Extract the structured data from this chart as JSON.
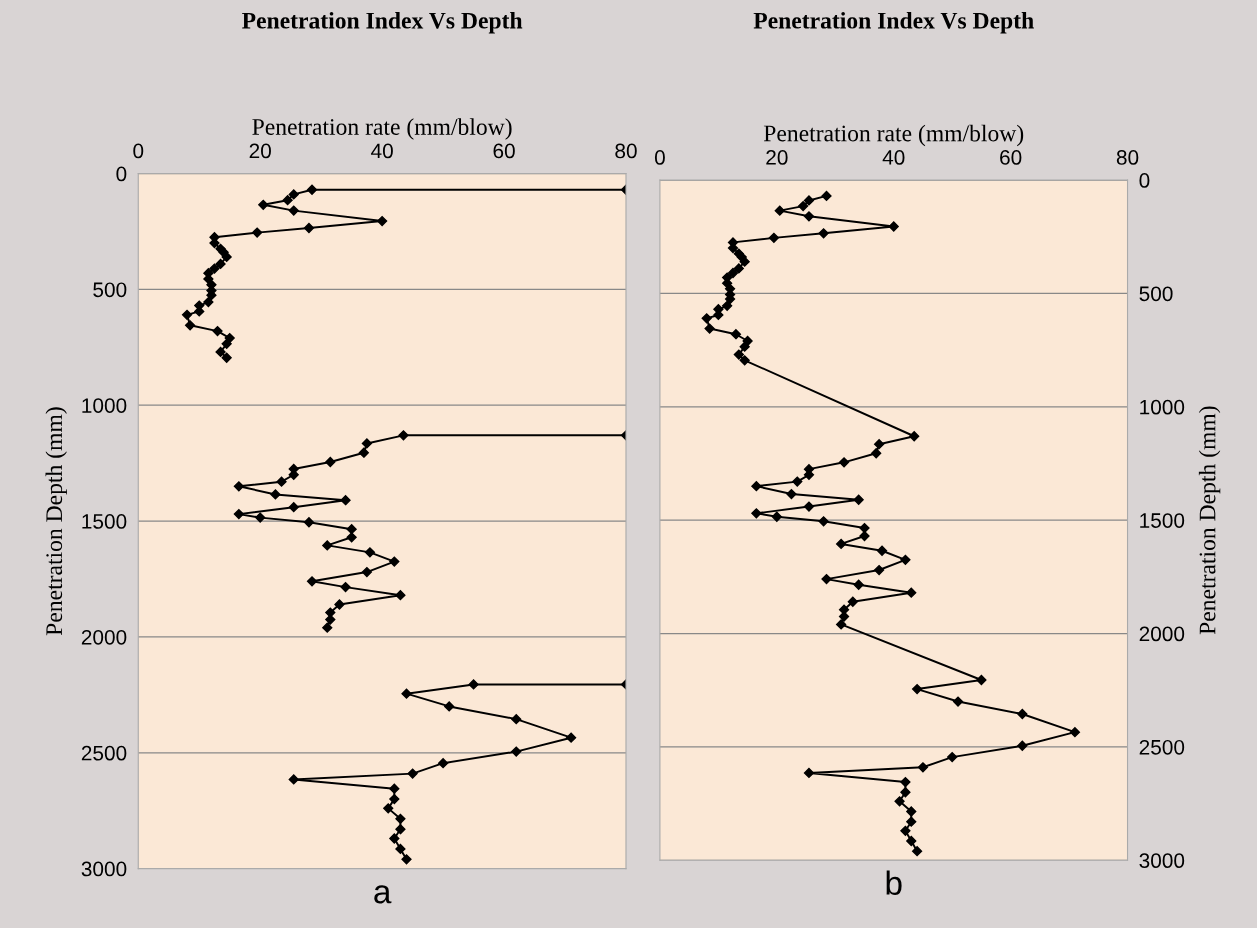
{
  "chart_data": [
    {
      "type": "line",
      "title": "Penetration Index Vs Depth",
      "xlabel": "Penetration rate (mm/blow)",
      "ylabel": "Penetration Depth (mm)",
      "xlim": [
        0,
        80
      ],
      "xticks": [
        0,
        20,
        40,
        60,
        80
      ],
      "ylim": [
        3000,
        0
      ],
      "yticks": [
        0,
        500,
        1000,
        1500,
        2000,
        2500,
        3000
      ],
      "grid": "y",
      "marker": "diamond",
      "line_style": "solid",
      "annotations": [
        "a"
      ],
      "series": [
        {
          "color": "#000000",
          "x": [
            80,
            28.5,
            25.5,
            24.5,
            20.5,
            25.5,
            40,
            28,
            19.5,
            12.5,
            12.5,
            13.5,
            14,
            14.5,
            13.5,
            12.5,
            11.5,
            11.5,
            12,
            12,
            12,
            11.5,
            10,
            10,
            8,
            8.5,
            13,
            15,
            14.5,
            13.5,
            14.5,
            null,
            80,
            43.5,
            37.5,
            37,
            31.5,
            25.5,
            25.5,
            23.5,
            16.5,
            22.5,
            34,
            25.5,
            16.5,
            20,
            28,
            35,
            35,
            31,
            38,
            42,
            37.5,
            28.5,
            34,
            43,
            33,
            31.5,
            31.5,
            31,
            null,
            80,
            55,
            44,
            51,
            62,
            71,
            62,
            50,
            45,
            25.5,
            42,
            42,
            41,
            43,
            43,
            42,
            43,
            44
          ],
          "values": [
            70,
            70,
            90,
            115,
            135,
            160,
            205,
            235,
            255,
            275,
            300,
            325,
            340,
            360,
            390,
            410,
            430,
            455,
            480,
            505,
            525,
            555,
            570,
            595,
            610,
            655,
            680,
            710,
            735,
            770,
            795,
            null,
            1130,
            1130,
            1165,
            1205,
            1245,
            1275,
            1300,
            1330,
            1350,
            1385,
            1410,
            1440,
            1470,
            1485,
            1505,
            1535,
            1570,
            1605,
            1635,
            1675,
            1720,
            1760,
            1785,
            1820,
            1860,
            1895,
            1925,
            1960,
            null,
            2205,
            2205,
            2245,
            2300,
            2355,
            2435,
            2495,
            2545,
            2590,
            2615,
            2655,
            2700,
            2740,
            2785,
            2830,
            2870,
            2915,
            2960
          ]
        }
      ]
    },
    {
      "type": "line",
      "title": "Penetration Index Vs Depth",
      "xlabel": "Penetration rate (mm/blow)",
      "y2label": "Penetration Depth (mm)",
      "xlim": [
        0,
        80
      ],
      "xticks": [
        0,
        20,
        40,
        60,
        80
      ],
      "y2lim": [
        3000,
        0
      ],
      "y2ticks": [
        0,
        500,
        1000,
        1500,
        2000,
        2500,
        3000
      ],
      "grid": "y",
      "marker": "diamond",
      "line_style": "solid",
      "annotations": [
        "b"
      ],
      "series": [
        {
          "color": "#000000",
          "axis": "y2",
          "x": [
            28.5,
            25.5,
            24.5,
            20.5,
            25.5,
            40,
            28,
            19.5,
            12.5,
            12.5,
            13.5,
            14,
            14.5,
            13.5,
            12.5,
            11.5,
            11.5,
            12,
            12,
            12,
            11.5,
            10,
            10,
            8,
            8.5,
            13,
            15,
            14.5,
            13.5,
            14.5,
            43.5,
            37.5,
            37,
            31.5,
            25.5,
            25.5,
            23.5,
            16.5,
            22.5,
            34,
            25.5,
            16.5,
            20,
            28,
            35,
            35,
            31,
            38,
            42,
            37.5,
            28.5,
            34,
            43,
            33,
            31.5,
            31.5,
            31,
            55,
            44,
            51,
            62,
            71,
            62,
            50,
            45,
            25.5,
            42,
            42,
            41,
            43,
            43,
            42,
            43,
            44
          ],
          "values": [
            70,
            90,
            115,
            135,
            160,
            205,
            235,
            255,
            275,
            300,
            325,
            340,
            360,
            390,
            410,
            430,
            455,
            480,
            505,
            525,
            555,
            570,
            595,
            610,
            655,
            680,
            710,
            735,
            770,
            795,
            1130,
            1165,
            1205,
            1245,
            1275,
            1300,
            1330,
            1350,
            1385,
            1410,
            1440,
            1470,
            1485,
            1505,
            1535,
            1570,
            1605,
            1635,
            1675,
            1720,
            1760,
            1785,
            1820,
            1860,
            1895,
            1925,
            1960,
            2205,
            2245,
            2300,
            2355,
            2435,
            2495,
            2545,
            2590,
            2615,
            2655,
            2700,
            2740,
            2785,
            2830,
            2870,
            2915,
            2960
          ]
        }
      ]
    }
  ]
}
